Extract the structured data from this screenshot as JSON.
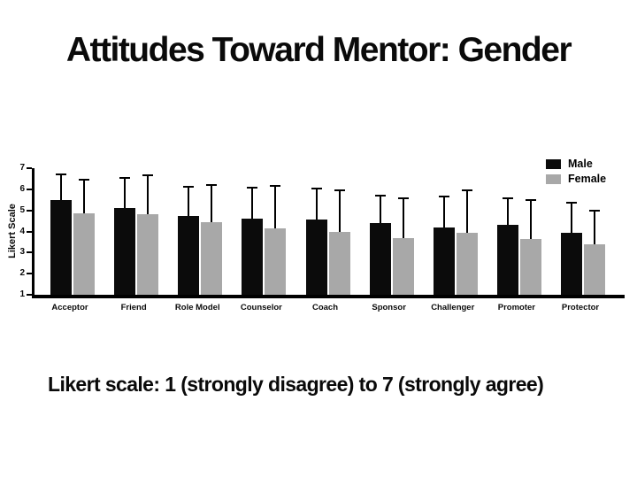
{
  "slide": {
    "title": "Attitudes Toward Mentor: Gender",
    "caption": "Likert scale: 1 (strongly disagree) to 7 (strongly agree)"
  },
  "colors": {
    "male": "#0b0b0b",
    "female": "#a8a8a8",
    "axis": "#000000",
    "background": "#ffffff"
  },
  "chart_data": {
    "type": "bar",
    "title": "",
    "xlabel": "",
    "ylabel": "Likert Scale",
    "ylim": [
      1,
      7
    ],
    "yticks": [
      1,
      2,
      3,
      4,
      5,
      6,
      7
    ],
    "grid": false,
    "legend_position": "top-right",
    "categories": [
      "Acceptor",
      "Friend",
      "Role Model",
      "Counselor",
      "Coach",
      "Sponsor",
      "Challenger",
      "Promoter",
      "Protector"
    ],
    "series": [
      {
        "name": "Male",
        "color": "#0b0b0b",
        "values": [
          5.5,
          5.1,
          4.75,
          4.6,
          4.55,
          4.4,
          4.2,
          4.3,
          3.95
        ],
        "error_upper": [
          6.75,
          6.6,
          6.15,
          6.1,
          6.1,
          5.75,
          5.7,
          5.6,
          5.4
        ]
      },
      {
        "name": "Female",
        "color": "#a8a8a8",
        "values": [
          4.85,
          4.8,
          4.45,
          4.15,
          4.0,
          3.7,
          3.95,
          3.65,
          3.4
        ],
        "error_upper": [
          6.5,
          6.7,
          6.25,
          6.2,
          6.0,
          5.6,
          6.0,
          5.55,
          5.05
        ]
      }
    ]
  }
}
